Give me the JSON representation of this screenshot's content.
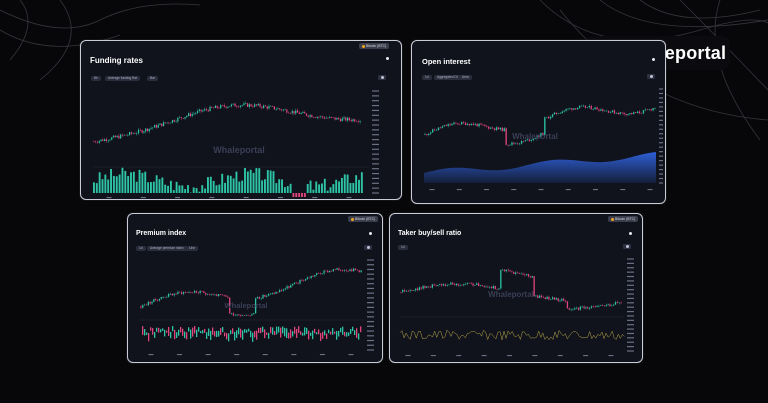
{
  "brand": {
    "name": "Whaleportal"
  },
  "colors": {
    "up": "#2ec4a6",
    "down": "#e0457b",
    "area": "#2f63e0",
    "ratio_line": "#b8a848"
  },
  "cards": {
    "funding": {
      "title": "Funding rates",
      "badge": "Bitcoin (BTC)",
      "filters": [
        "8h",
        "Average funding Rat",
        "Bar"
      ],
      "watermark": "Whaleportal"
    },
    "oi": {
      "title": "Open interest",
      "filters": [
        "1d",
        "Aggregated OI",
        "Area"
      ],
      "watermark": "Whaleportal"
    },
    "premium": {
      "title": "Premium index",
      "badge": "Bitcoin (BTC)",
      "filters": [
        "1d",
        "Average premium index",
        "Line"
      ],
      "watermark": "Whaleportal"
    },
    "taker": {
      "title": "Taker buy/sell ratio",
      "badge": "Bitcoin (BTC)",
      "filters": [
        "1d"
      ],
      "watermark": "Whaleportal"
    }
  }
}
